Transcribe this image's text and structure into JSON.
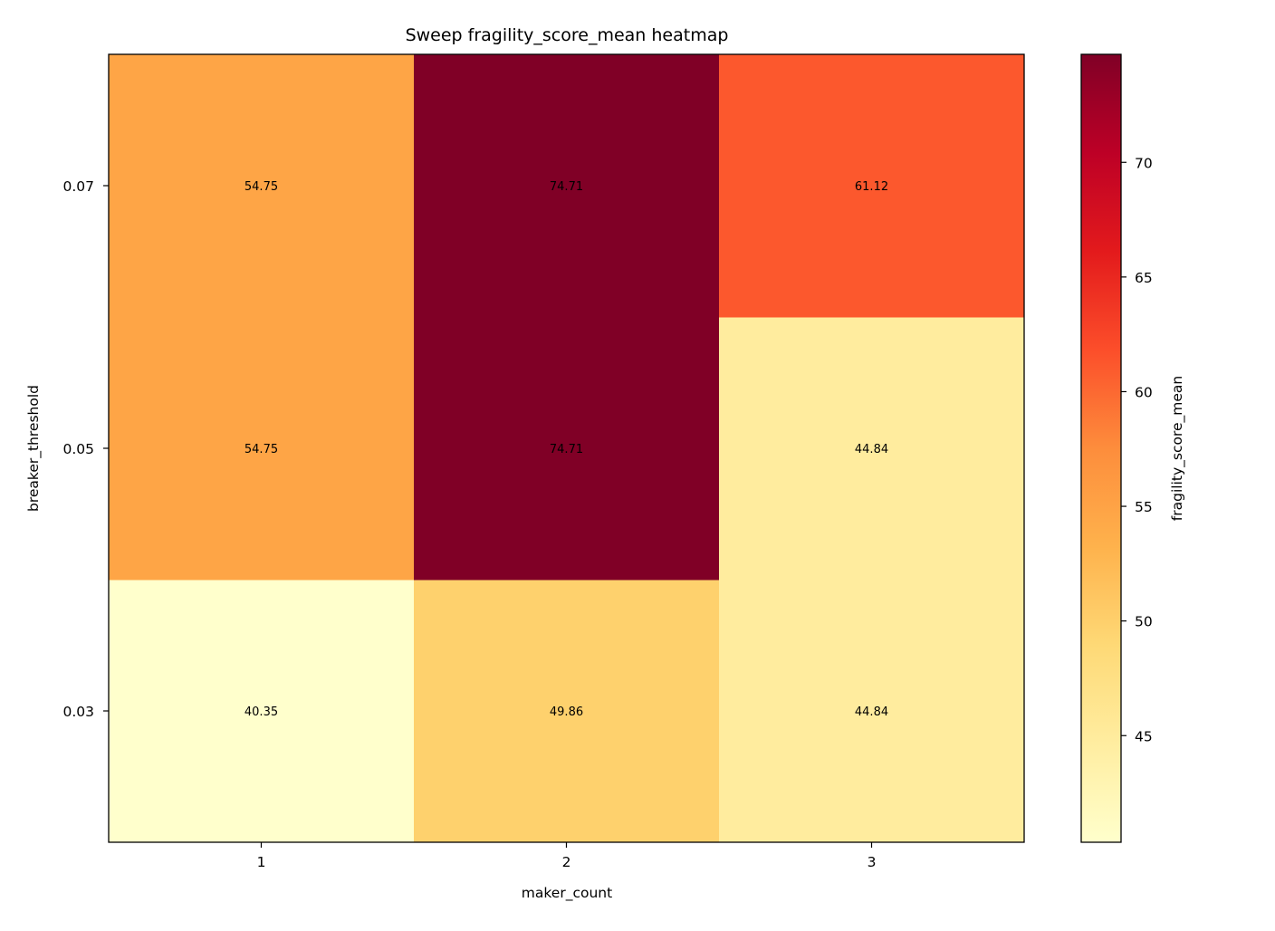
{
  "chart_data": {
    "type": "heatmap",
    "title": "Sweep fragility_score_mean heatmap",
    "xlabel": "maker_count",
    "ylabel": "breaker_threshold",
    "x_categories": [
      "1",
      "2",
      "3"
    ],
    "y_categories": [
      "0.03",
      "0.05",
      "0.07"
    ],
    "y_order": "ascending-upward",
    "values": [
      [
        40.35,
        49.86,
        44.84
      ],
      [
        54.75,
        74.71,
        44.84
      ],
      [
        54.75,
        74.71,
        61.12
      ]
    ],
    "cell_labels": [
      [
        "40.35",
        "49.86",
        "44.84"
      ],
      [
        "54.75",
        "74.71",
        "44.84"
      ],
      [
        "54.75",
        "74.71",
        "61.12"
      ]
    ],
    "colormap": "YlOrRd",
    "colormap_stops": [
      "#ffffcc",
      "#ffeda0",
      "#fed976",
      "#feb24c",
      "#fd8d3c",
      "#fc4e2a",
      "#e31a1c",
      "#bd0026",
      "#800026"
    ],
    "colorbar": {
      "label": "fragility_score_mean",
      "range": [
        40.35,
        74.71
      ],
      "ticks": [
        45,
        50,
        55,
        60,
        65,
        70
      ],
      "tick_labels": [
        "45",
        "50",
        "55",
        "60",
        "65",
        "70"
      ]
    },
    "grid": false
  }
}
